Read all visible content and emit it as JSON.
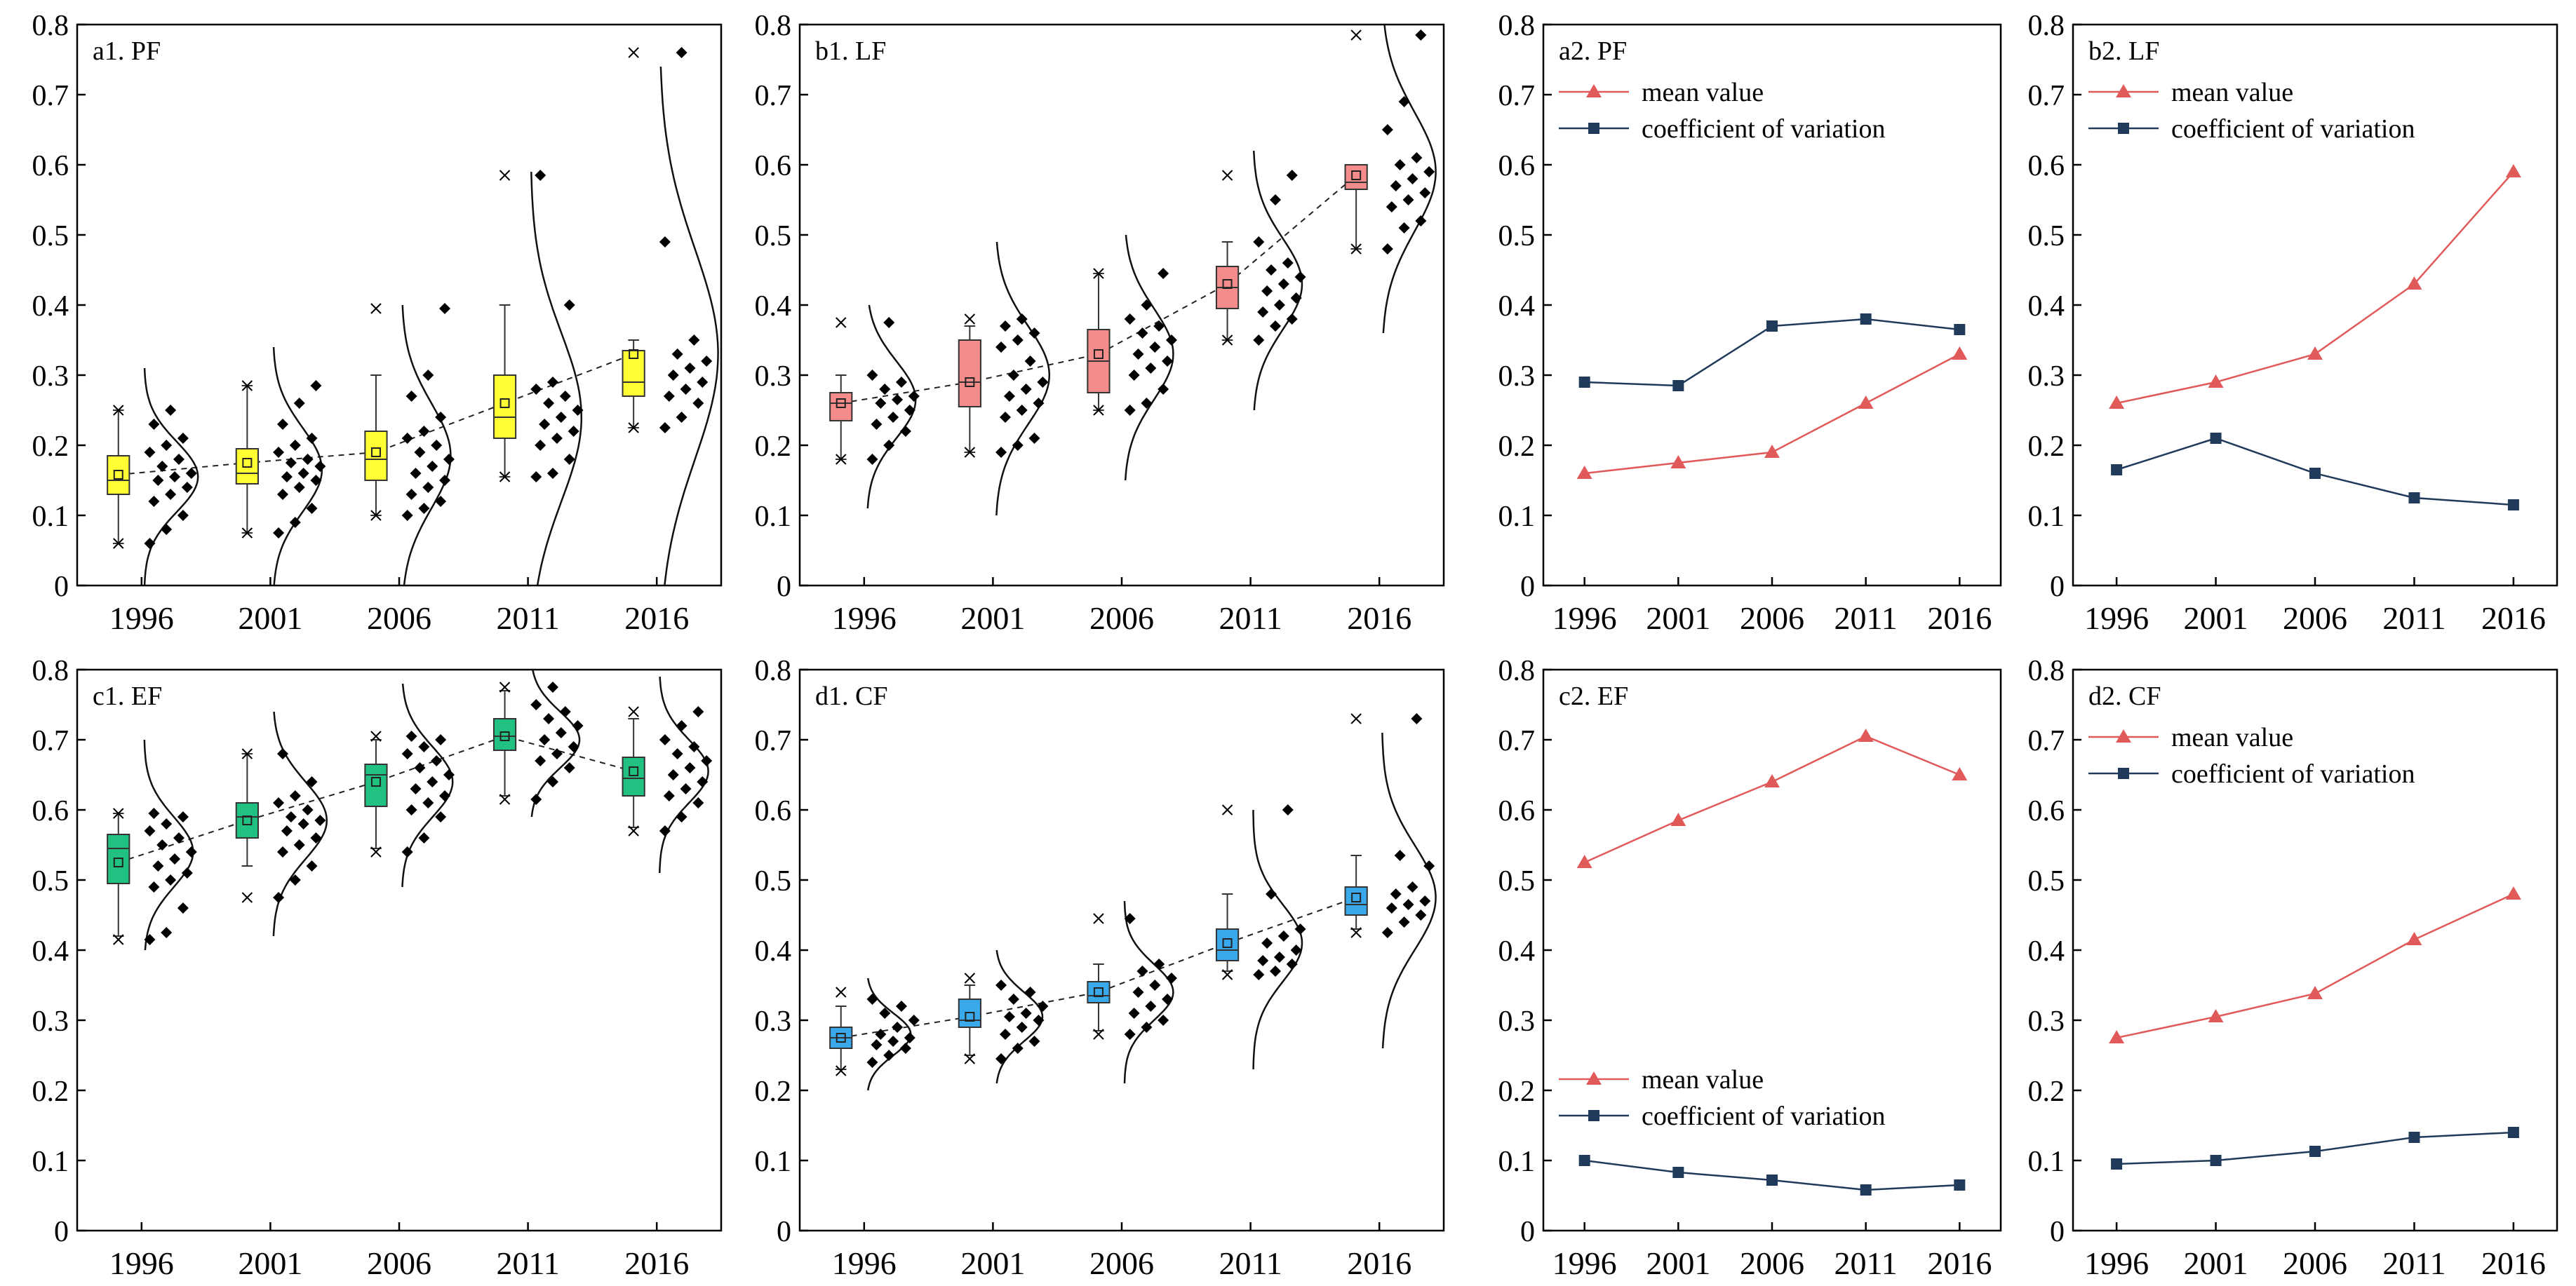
{
  "figure": {
    "background": "#ffffff"
  },
  "style": {
    "colors": {
      "pf": "#ffff33",
      "lf": "#f48c8c",
      "ef": "#21c281",
      "cf": "#3aa9ec",
      "mean": "#e05a5a",
      "cv": "#1f3a5a",
      "axis": "#000000",
      "points": "#000000"
    }
  },
  "chart_data": [
    {
      "id": "a1",
      "type": "box",
      "title": "a1. PF",
      "color_key": "pf",
      "categories": [
        "1996",
        "2001",
        "2006",
        "2011",
        "2016"
      ],
      "ylim": [
        0,
        0.8
      ],
      "yticks": [
        "0",
        "0.1",
        "0.2",
        "0.3",
        "0.4",
        "0.5",
        "0.6",
        "0.7",
        "0.8"
      ],
      "boxes": [
        {
          "q1": 0.13,
          "median": 0.15,
          "q3": 0.185,
          "mean": 0.158,
          "whisker_low": 0.06,
          "whisker_high": 0.25,
          "outliers": [
            0.06,
            0.25
          ]
        },
        {
          "q1": 0.145,
          "median": 0.16,
          "q3": 0.195,
          "mean": 0.175,
          "whisker_low": 0.075,
          "whisker_high": 0.285,
          "outliers": [
            0.075,
            0.285
          ]
        },
        {
          "q1": 0.15,
          "median": 0.18,
          "q3": 0.22,
          "mean": 0.19,
          "whisker_low": 0.1,
          "whisker_high": 0.3,
          "outliers": [
            0.1,
            0.395
          ]
        },
        {
          "q1": 0.21,
          "median": 0.24,
          "q3": 0.3,
          "mean": 0.26,
          "whisker_low": 0.155,
          "whisker_high": 0.4,
          "outliers": [
            0.155,
            0.585
          ]
        },
        {
          "q1": 0.27,
          "median": 0.29,
          "q3": 0.335,
          "mean": 0.33,
          "whisker_low": 0.225,
          "whisker_high": 0.35,
          "outliers": [
            0.225,
            0.76
          ]
        }
      ],
      "points": [
        [
          0.06,
          0.08,
          0.1,
          0.12,
          0.13,
          0.14,
          0.15,
          0.155,
          0.16,
          0.17,
          0.18,
          0.19,
          0.2,
          0.21,
          0.23,
          0.25
        ],
        [
          0.075,
          0.09,
          0.11,
          0.13,
          0.14,
          0.15,
          0.155,
          0.16,
          0.17,
          0.175,
          0.18,
          0.19,
          0.2,
          0.21,
          0.23,
          0.26,
          0.285
        ],
        [
          0.1,
          0.11,
          0.12,
          0.13,
          0.14,
          0.15,
          0.16,
          0.17,
          0.18,
          0.19,
          0.2,
          0.21,
          0.22,
          0.24,
          0.27,
          0.3,
          0.395
        ],
        [
          0.155,
          0.16,
          0.18,
          0.2,
          0.21,
          0.22,
          0.23,
          0.24,
          0.25,
          0.26,
          0.27,
          0.28,
          0.29,
          0.4,
          0.585
        ],
        [
          0.225,
          0.24,
          0.26,
          0.27,
          0.28,
          0.29,
          0.3,
          0.31,
          0.32,
          0.33,
          0.35,
          0.49,
          0.76
        ]
      ],
      "curves": [
        {
          "mean": 0.155,
          "sd": 0.05,
          "width": 0.55,
          "low": 0.0,
          "high": 0.31
        },
        {
          "mean": 0.165,
          "sd": 0.06,
          "width": 0.5,
          "low": 0.0,
          "high": 0.34
        },
        {
          "mean": 0.185,
          "sd": 0.075,
          "width": 0.5,
          "low": 0.0,
          "high": 0.4
        },
        {
          "mean": 0.24,
          "sd": 0.12,
          "width": 0.52,
          "low": 0.0,
          "high": 0.59
        },
        {
          "mean": 0.33,
          "sd": 0.15,
          "width": 0.6,
          "low": 0.0,
          "high": 0.74
        }
      ]
    },
    {
      "id": "b1",
      "type": "box",
      "title": "b1. LF",
      "color_key": "lf",
      "categories": [
        "1996",
        "2001",
        "2006",
        "2011",
        "2016"
      ],
      "ylim": [
        0,
        0.8
      ],
      "yticks": [
        "0",
        "0.1",
        "0.2",
        "0.3",
        "0.4",
        "0.5",
        "0.6",
        "0.7",
        "0.8"
      ],
      "boxes": [
        {
          "q1": 0.235,
          "median": 0.26,
          "q3": 0.275,
          "mean": 0.26,
          "whisker_low": 0.18,
          "whisker_high": 0.3,
          "outliers": [
            0.18,
            0.375
          ]
        },
        {
          "q1": 0.255,
          "median": 0.29,
          "q3": 0.35,
          "mean": 0.29,
          "whisker_low": 0.19,
          "whisker_high": 0.37,
          "outliers": [
            0.19,
            0.38
          ]
        },
        {
          "q1": 0.275,
          "median": 0.32,
          "q3": 0.365,
          "mean": 0.33,
          "whisker_low": 0.25,
          "whisker_high": 0.445,
          "outliers": [
            0.25,
            0.445
          ]
        },
        {
          "q1": 0.395,
          "median": 0.425,
          "q3": 0.455,
          "mean": 0.43,
          "whisker_low": 0.35,
          "whisker_high": 0.49,
          "outliers": [
            0.35,
            0.585
          ]
        },
        {
          "q1": 0.565,
          "median": 0.575,
          "q3": 0.6,
          "mean": 0.585,
          "whisker_low": 0.48,
          "whisker_high": 0.6,
          "outliers": [
            0.48,
            0.785
          ]
        }
      ],
      "points": [
        [
          0.18,
          0.2,
          0.22,
          0.23,
          0.24,
          0.25,
          0.26,
          0.265,
          0.27,
          0.28,
          0.29,
          0.3,
          0.375
        ],
        [
          0.19,
          0.2,
          0.21,
          0.24,
          0.25,
          0.26,
          0.27,
          0.28,
          0.29,
          0.3,
          0.32,
          0.34,
          0.35,
          0.36,
          0.37,
          0.38
        ],
        [
          0.25,
          0.26,
          0.28,
          0.3,
          0.31,
          0.32,
          0.33,
          0.34,
          0.35,
          0.36,
          0.37,
          0.38,
          0.4,
          0.445
        ],
        [
          0.35,
          0.37,
          0.38,
          0.39,
          0.4,
          0.41,
          0.42,
          0.43,
          0.44,
          0.45,
          0.46,
          0.49,
          0.55,
          0.585
        ],
        [
          0.48,
          0.51,
          0.52,
          0.54,
          0.55,
          0.56,
          0.57,
          0.58,
          0.59,
          0.6,
          0.61,
          0.65,
          0.69,
          0.785
        ]
      ],
      "curves": [
        {
          "mean": 0.265,
          "sd": 0.055,
          "width": 0.5,
          "low": 0.11,
          "high": 0.4
        },
        {
          "mean": 0.3,
          "sd": 0.07,
          "width": 0.55,
          "low": 0.1,
          "high": 0.49
        },
        {
          "mean": 0.33,
          "sd": 0.065,
          "width": 0.5,
          "low": 0.15,
          "high": 0.5
        },
        {
          "mean": 0.43,
          "sd": 0.065,
          "width": 0.5,
          "low": 0.25,
          "high": 0.62
        },
        {
          "mean": 0.59,
          "sd": 0.085,
          "width": 0.55,
          "low": 0.36,
          "high": 0.8
        }
      ]
    },
    {
      "id": "c1",
      "type": "box",
      "title": "c1. EF",
      "color_key": "ef",
      "categories": [
        "1996",
        "2001",
        "2006",
        "2011",
        "2016"
      ],
      "ylim": [
        0,
        0.8
      ],
      "yticks": [
        "0",
        "0.1",
        "0.2",
        "0.3",
        "0.4",
        "0.5",
        "0.6",
        "0.7",
        "0.8"
      ],
      "boxes": [
        {
          "q1": 0.495,
          "median": 0.545,
          "q3": 0.565,
          "mean": 0.525,
          "whisker_low": 0.42,
          "whisker_high": 0.595,
          "outliers": [
            0.415,
            0.595
          ]
        },
        {
          "q1": 0.56,
          "median": 0.59,
          "q3": 0.61,
          "mean": 0.585,
          "whisker_low": 0.52,
          "whisker_high": 0.68,
          "outliers": [
            0.475,
            0.68
          ]
        },
        {
          "q1": 0.605,
          "median": 0.65,
          "q3": 0.665,
          "mean": 0.64,
          "whisker_low": 0.545,
          "whisker_high": 0.7,
          "outliers": [
            0.54,
            0.705
          ]
        },
        {
          "q1": 0.685,
          "median": 0.705,
          "q3": 0.73,
          "mean": 0.705,
          "whisker_low": 0.62,
          "whisker_high": 0.77,
          "outliers": [
            0.615,
            0.775
          ]
        },
        {
          "q1": 0.62,
          "median": 0.645,
          "q3": 0.675,
          "mean": 0.655,
          "whisker_low": 0.575,
          "whisker_high": 0.73,
          "outliers": [
            0.57,
            0.74
          ]
        }
      ],
      "points": [
        [
          0.415,
          0.425,
          0.46,
          0.49,
          0.5,
          0.51,
          0.52,
          0.53,
          0.54,
          0.55,
          0.56,
          0.57,
          0.58,
          0.59,
          0.595
        ],
        [
          0.475,
          0.5,
          0.52,
          0.54,
          0.55,
          0.56,
          0.57,
          0.58,
          0.585,
          0.59,
          0.6,
          0.61,
          0.62,
          0.64,
          0.68
        ],
        [
          0.54,
          0.56,
          0.59,
          0.6,
          0.61,
          0.62,
          0.63,
          0.64,
          0.65,
          0.66,
          0.67,
          0.68,
          0.69,
          0.7,
          0.705
        ],
        [
          0.615,
          0.64,
          0.66,
          0.67,
          0.68,
          0.69,
          0.7,
          0.71,
          0.72,
          0.73,
          0.74,
          0.75,
          0.775
        ],
        [
          0.57,
          0.59,
          0.61,
          0.62,
          0.63,
          0.64,
          0.65,
          0.66,
          0.67,
          0.68,
          0.69,
          0.7,
          0.72,
          0.74
        ]
      ],
      "curves": [
        {
          "mean": 0.54,
          "sd": 0.05,
          "width": 0.5,
          "low": 0.4,
          "high": 0.7
        },
        {
          "mean": 0.585,
          "sd": 0.055,
          "width": 0.55,
          "low": 0.42,
          "high": 0.74
        },
        {
          "mean": 0.64,
          "sd": 0.05,
          "width": 0.52,
          "low": 0.49,
          "high": 0.78
        },
        {
          "mean": 0.7,
          "sd": 0.04,
          "width": 0.5,
          "low": 0.59,
          "high": 0.8
        },
        {
          "mean": 0.655,
          "sd": 0.045,
          "width": 0.5,
          "low": 0.51,
          "high": 0.79
        }
      ]
    },
    {
      "id": "d1",
      "type": "box",
      "title": "d1. CF",
      "color_key": "cf",
      "categories": [
        "1996",
        "2001",
        "2006",
        "2011",
        "2016"
      ],
      "ylim": [
        0,
        0.8
      ],
      "yticks": [
        "0",
        "0.1",
        "0.2",
        "0.3",
        "0.4",
        "0.5",
        "0.6",
        "0.7",
        "0.8"
      ],
      "boxes": [
        {
          "q1": 0.26,
          "median": 0.275,
          "q3": 0.29,
          "mean": 0.275,
          "whisker_low": 0.23,
          "whisker_high": 0.32,
          "outliers": [
            0.228,
            0.34
          ]
        },
        {
          "q1": 0.29,
          "median": 0.3,
          "q3": 0.33,
          "mean": 0.305,
          "whisker_low": 0.25,
          "whisker_high": 0.35,
          "outliers": [
            0.245,
            0.36
          ]
        },
        {
          "q1": 0.325,
          "median": 0.335,
          "q3": 0.355,
          "mean": 0.34,
          "whisker_low": 0.285,
          "whisker_high": 0.38,
          "outliers": [
            0.28,
            0.445
          ]
        },
        {
          "q1": 0.385,
          "median": 0.4,
          "q3": 0.43,
          "mean": 0.41,
          "whisker_low": 0.37,
          "whisker_high": 0.48,
          "outliers": [
            0.365,
            0.6
          ]
        },
        {
          "q1": 0.45,
          "median": 0.465,
          "q3": 0.49,
          "mean": 0.475,
          "whisker_low": 0.43,
          "whisker_high": 0.535,
          "outliers": [
            0.425,
            0.73
          ]
        }
      ],
      "points": [
        [
          0.24,
          0.25,
          0.26,
          0.265,
          0.27,
          0.275,
          0.28,
          0.29,
          0.3,
          0.31,
          0.32,
          0.33
        ],
        [
          0.245,
          0.26,
          0.27,
          0.28,
          0.29,
          0.3,
          0.305,
          0.31,
          0.32,
          0.33,
          0.34,
          0.35
        ],
        [
          0.28,
          0.29,
          0.3,
          0.31,
          0.32,
          0.33,
          0.34,
          0.35,
          0.36,
          0.37,
          0.38,
          0.445
        ],
        [
          0.365,
          0.37,
          0.38,
          0.385,
          0.39,
          0.4,
          0.41,
          0.42,
          0.43,
          0.48,
          0.6
        ],
        [
          0.425,
          0.44,
          0.45,
          0.46,
          0.465,
          0.47,
          0.48,
          0.49,
          0.52,
          0.535,
          0.73
        ]
      ],
      "curves": [
        {
          "mean": 0.28,
          "sd": 0.03,
          "width": 0.45,
          "low": 0.2,
          "high": 0.36
        },
        {
          "mean": 0.305,
          "sd": 0.035,
          "width": 0.48,
          "low": 0.21,
          "high": 0.4
        },
        {
          "mean": 0.34,
          "sd": 0.04,
          "width": 0.5,
          "low": 0.21,
          "high": 0.47
        },
        {
          "mean": 0.41,
          "sd": 0.055,
          "width": 0.5,
          "low": 0.23,
          "high": 0.6
        },
        {
          "mean": 0.475,
          "sd": 0.075,
          "width": 0.55,
          "low": 0.26,
          "high": 0.71
        }
      ]
    },
    {
      "id": "a2",
      "type": "line",
      "title": "a2. PF",
      "categories": [
        "1996",
        "2001",
        "2006",
        "2011",
        "2016"
      ],
      "ylim": [
        0,
        0.8
      ],
      "yticks": [
        "0",
        "0.1",
        "0.2",
        "0.3",
        "0.4",
        "0.5",
        "0.6",
        "0.7",
        "0.8"
      ],
      "legend_position": "top-left",
      "series": [
        {
          "name": "mean value",
          "marker": "triangle",
          "color_key": "mean",
          "values": [
            0.16,
            0.175,
            0.19,
            0.26,
            0.33
          ]
        },
        {
          "name": "coefficient of variation",
          "marker": "square",
          "color_key": "cv",
          "values": [
            0.29,
            0.285,
            0.37,
            0.38,
            0.365
          ]
        }
      ]
    },
    {
      "id": "b2",
      "type": "line",
      "title": "b2. LF",
      "categories": [
        "1996",
        "2001",
        "2006",
        "2011",
        "2016"
      ],
      "ylim": [
        0,
        0.8
      ],
      "yticks": [
        "0",
        "0.1",
        "0.2",
        "0.3",
        "0.4",
        "0.5",
        "0.6",
        "0.7",
        "0.8"
      ],
      "legend_position": "top-left",
      "series": [
        {
          "name": "mean value",
          "marker": "triangle",
          "color_key": "mean",
          "values": [
            0.26,
            0.29,
            0.33,
            0.43,
            0.59
          ]
        },
        {
          "name": "coefficient of variation",
          "marker": "square",
          "color_key": "cv",
          "values": [
            0.165,
            0.21,
            0.16,
            0.125,
            0.115
          ]
        }
      ]
    },
    {
      "id": "c2",
      "type": "line",
      "title": "c2. EF",
      "categories": [
        "1996",
        "2001",
        "2006",
        "2011",
        "2016"
      ],
      "ylim": [
        0,
        0.8
      ],
      "yticks": [
        "0",
        "0.1",
        "0.2",
        "0.3",
        "0.4",
        "0.5",
        "0.6",
        "0.7",
        "0.8"
      ],
      "legend_position": "bottom-left",
      "series": [
        {
          "name": "mean value",
          "marker": "triangle",
          "color_key": "mean",
          "values": [
            0.525,
            0.585,
            0.64,
            0.705,
            0.65
          ]
        },
        {
          "name": "coefficient of variation",
          "marker": "square",
          "color_key": "cv",
          "values": [
            0.1,
            0.083,
            0.072,
            0.058,
            0.065
          ]
        }
      ]
    },
    {
      "id": "d2",
      "type": "line",
      "title": "d2. CF",
      "categories": [
        "1996",
        "2001",
        "2006",
        "2011",
        "2016"
      ],
      "ylim": [
        0,
        0.8
      ],
      "yticks": [
        "0",
        "0.1",
        "0.2",
        "0.3",
        "0.4",
        "0.5",
        "0.6",
        "0.7",
        "0.8"
      ],
      "legend_position": "top-left",
      "series": [
        {
          "name": "mean value",
          "marker": "triangle",
          "color_key": "mean",
          "values": [
            0.275,
            0.305,
            0.338,
            0.415,
            0.48
          ]
        },
        {
          "name": "coefficient of variation",
          "marker": "square",
          "color_key": "cv",
          "values": [
            0.095,
            0.1,
            0.113,
            0.133,
            0.14
          ]
        }
      ]
    }
  ]
}
